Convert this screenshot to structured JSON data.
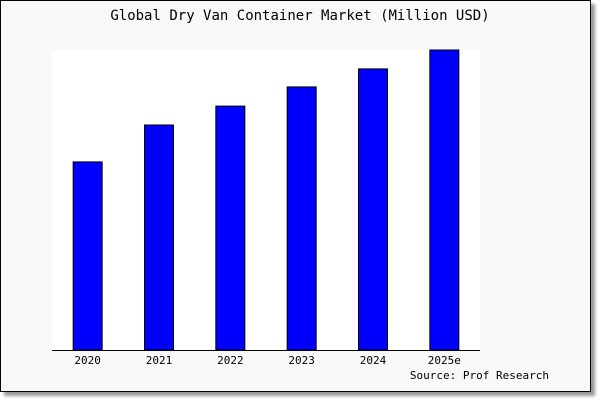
{
  "chart_data": {
    "type": "bar",
    "title": "Global Dry Van Container Market (Million USD)",
    "categories": [
      "2020",
      "2021",
      "2022",
      "2023",
      "2024",
      "2025e"
    ],
    "values": [
      62.7,
      75.0,
      81.3,
      87.7,
      93.7,
      100.0
    ],
    "xlabel": "",
    "ylabel": "",
    "ylim": [
      0,
      100
    ],
    "grid": false,
    "bar_color": "#0000ff",
    "annotations": [
      "Source: Prof Research"
    ]
  }
}
